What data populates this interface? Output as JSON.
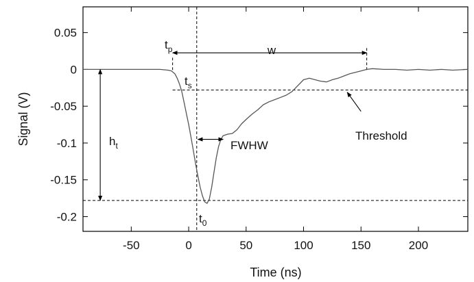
{
  "chart_data": {
    "type": "line",
    "title": "",
    "xlabel": "Time (ns)",
    "ylabel": "Signal (V)",
    "xlim": [
      -92,
      243
    ],
    "ylim": [
      -0.22,
      0.085
    ],
    "xticks": [
      -50,
      0,
      50,
      100,
      150,
      200
    ],
    "xtick_labels": [
      "-50",
      "0",
      "50",
      "100",
      "150",
      "200"
    ],
    "yticks": [
      0.05,
      0,
      -0.05,
      -0.1,
      -0.15,
      -0.2
    ],
    "ytick_labels": [
      "0.05",
      "0",
      "-0.05",
      "-0.1",
      "-0.15",
      "-0.2"
    ],
    "grid": false,
    "legend": "none",
    "colors": {
      "signal": "#555555",
      "axes": "#000000",
      "reference": "#000000"
    },
    "series": [
      {
        "x": [
          -92,
          -60,
          -40,
          -25,
          -18,
          -15,
          -12,
          -10,
          -8,
          -6,
          -4,
          -2,
          0,
          2,
          4,
          6,
          8,
          10,
          12,
          14,
          16,
          18,
          20,
          22,
          24,
          26,
          28,
          30,
          34,
          38,
          42,
          46,
          50,
          55,
          60,
          65,
          70,
          75,
          80,
          85,
          90,
          95,
          100,
          105,
          110,
          115,
          120,
          125,
          130,
          135,
          140,
          145,
          150,
          155,
          160,
          170,
          180,
          190,
          200,
          210,
          220,
          230,
          243
        ],
        "y": [
          0,
          0,
          0,
          0,
          -0.001,
          -0.002,
          -0.006,
          -0.012,
          -0.02,
          -0.03,
          -0.045,
          -0.06,
          -0.075,
          -0.092,
          -0.11,
          -0.128,
          -0.145,
          -0.16,
          -0.172,
          -0.18,
          -0.182,
          -0.176,
          -0.16,
          -0.14,
          -0.12,
          -0.105,
          -0.095,
          -0.09,
          -0.088,
          -0.087,
          -0.082,
          -0.074,
          -0.068,
          -0.061,
          -0.055,
          -0.048,
          -0.044,
          -0.041,
          -0.038,
          -0.035,
          -0.03,
          -0.022,
          -0.014,
          -0.012,
          -0.014,
          -0.016,
          -0.017,
          -0.014,
          -0.012,
          -0.009,
          -0.006,
          -0.004,
          -0.002,
          0,
          0.001,
          0,
          0,
          -0.001,
          0,
          -0.001,
          0,
          -0.001,
          0
        ]
      }
    ],
    "reference_lines": {
      "vertical_x": 7,
      "threshold_y": -0.028,
      "peak_y": -0.178
    },
    "annotations": {
      "tp": {
        "main": "t",
        "sub": "p",
        "x": -14
      },
      "w": {
        "label": "w",
        "x_start": -14,
        "x_end": 155,
        "y": 0.0225
      },
      "ts": {
        "main": "t",
        "sub": "s"
      },
      "ht": {
        "main": "h",
        "sub": "t",
        "x": -77
      },
      "fwhw": {
        "label": "FWHW",
        "x_start": 8,
        "x_end": 30,
        "y": -0.095
      },
      "t0": {
        "main": "t",
        "sub": "0"
      },
      "threshold": {
        "label": "Threshold",
        "arrow_from": [
          150,
          -0.057
        ],
        "arrow_to": [
          138,
          -0.031
        ]
      }
    }
  }
}
